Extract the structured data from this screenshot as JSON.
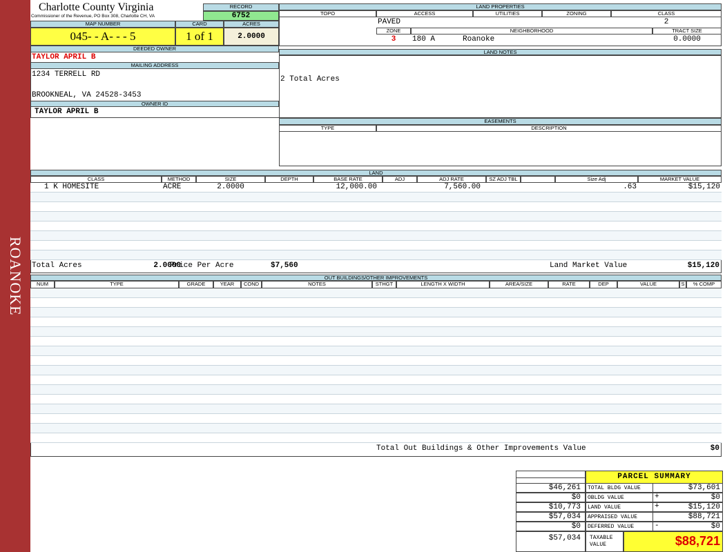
{
  "sidebar": "ROANOKE",
  "header": {
    "title": "Charlotte County Virginia",
    "subtitle": "Commissioner of the Revenue, PO Box 308, Charlotte CH, VA"
  },
  "record": {
    "label": "RECORD",
    "value": "6752"
  },
  "map": {
    "labels": [
      "MAP NUMBER",
      "CARD",
      "ACRES"
    ],
    "values": [
      "045- - A- - - 5",
      "1 of 1",
      "2.0000"
    ]
  },
  "owner": {
    "label": "DEEDED OWNER",
    "value": "TAYLOR APRIL B"
  },
  "mailing": {
    "label": "MAILING ADDRESS",
    "lines": [
      "1234 TERRELL RD",
      "BROOKNEAL, VA 24528-3453"
    ]
  },
  "owner_id": {
    "label": "OWNER ID",
    "value": "TAYLOR APRIL B"
  },
  "land_properties": {
    "title": "LAND PROPERTIES",
    "columns": [
      "TOPO",
      "ACCESS",
      "UTILITIES",
      "ZONING",
      "CLASS"
    ],
    "access": "PAVED",
    "class": "2",
    "zone_columns": [
      "ZONE",
      "NEIGHBORHOOD",
      "TRACT SIZE"
    ],
    "zone": "3",
    "neighborhood_code": "180 A",
    "neighborhood": "Roanoke",
    "tract_size": "0.0000"
  },
  "land_notes": {
    "title": "LAND NOTES",
    "text": "2 Total Acres"
  },
  "easements": {
    "title": "EASEMENTS",
    "columns": [
      "TYPE",
      "DESCRIPTION"
    ]
  },
  "land": {
    "title": "LAND",
    "columns": [
      "CLASS",
      "METHOD",
      "SIZE",
      "DEPTH",
      "BASE RATE",
      "ADJ",
      "ADJ RATE",
      "SZ ADJ TBL",
      null,
      "Size Adj",
      "MARKET VALUE"
    ],
    "rows": [
      [
        "1 K HOMESITE",
        "ACRE",
        "2.0000",
        null,
        "12,000.00",
        null,
        "7,560.00",
        null,
        null,
        ".63",
        "$15,120"
      ]
    ],
    "footer": {
      "total_acres_label": "Total Acres",
      "total_acres": "2.0000",
      "price_label": "Price Per Acre",
      "price": "$7,560",
      "market_label": "Land Market Value",
      "market": "$15,120"
    }
  },
  "outbuildings": {
    "title": "OUT BUILDINGS/OTHER IMPROVEMENTS",
    "columns": [
      "NUM",
      "TYPE",
      "GRADE",
      "YEAR",
      "COND",
      "NOTES",
      "STHGT",
      "LENGTH X WIDTH",
      "AREA/SIZE",
      "RATE",
      "DEP",
      "VALUE",
      "S",
      "% COMP"
    ],
    "total_label": "Total Out Buildings & Other Improvements Value",
    "total": "$0"
  },
  "summary": {
    "title": "PARCEL SUMMARY",
    "left": [
      "$46,261",
      "$0",
      "$10,773",
      "$57,034",
      "$0",
      "$57,034"
    ],
    "labels": [
      "TOTAL BLDG VALUE",
      "OBLDG VALUE",
      "LAND VALUE",
      "APPRAISED VALUE",
      "DEFERRED VALUE",
      "TAXABLE VALUE"
    ],
    "signs": [
      null,
      "+",
      "+",
      null,
      "-",
      null
    ],
    "values": [
      "$73,601",
      "$0",
      "$15,120",
      "$88,721",
      "$0",
      "$88,721"
    ]
  }
}
